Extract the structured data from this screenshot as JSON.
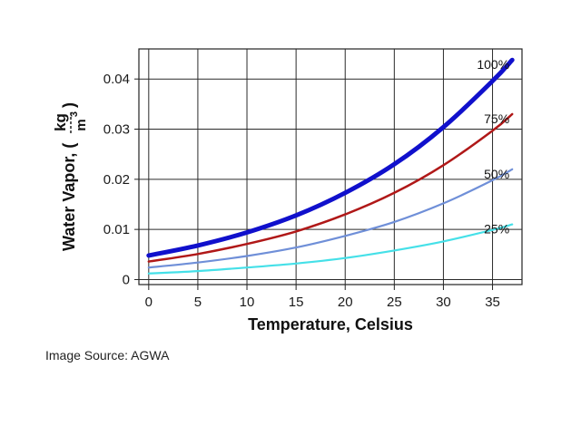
{
  "chart_data": {
    "type": "line",
    "title": "",
    "xlabel": "Temperature,   Celsius",
    "ylabel_prefix": "Water Vapor, (",
    "ylabel_num": "kg",
    "ylabel_den": "m",
    "ylabel_exp": "3",
    "ylabel_suffix": ")",
    "xlim": [
      -1,
      38
    ],
    "ylim": [
      -0.001,
      0.046
    ],
    "x_ticks": [
      0,
      5,
      10,
      15,
      20,
      25,
      30,
      35
    ],
    "y_ticks": [
      {
        "value": 0,
        "label": "0"
      },
      {
        "value": 0.01,
        "label": "0.01"
      },
      {
        "value": 0.02,
        "label": "0.02"
      },
      {
        "value": 0.03,
        "label": "0.03"
      },
      {
        "value": 0.04,
        "label": "0.04"
      }
    ],
    "grid": true,
    "x": [
      0,
      5,
      10,
      15,
      20,
      25,
      30,
      35,
      37
    ],
    "series": [
      {
        "name": "100%",
        "color": "#1010cc",
        "values": [
          0.0048,
          0.0068,
          0.0094,
          0.0128,
          0.0173,
          0.023,
          0.0304,
          0.0396,
          0.0438
        ]
      },
      {
        "name": "75%",
        "color": "#b01818",
        "values": [
          0.0036,
          0.0051,
          0.0071,
          0.0096,
          0.013,
          0.0173,
          0.0228,
          0.0297,
          0.033
        ]
      },
      {
        "name": "50%",
        "color": "#6f8fd8",
        "values": [
          0.0024,
          0.0034,
          0.0047,
          0.0064,
          0.0087,
          0.0115,
          0.0152,
          0.0198,
          0.022
        ]
      },
      {
        "name": "25%",
        "color": "#45e0e8",
        "values": [
          0.0012,
          0.0017,
          0.0024,
          0.0032,
          0.0043,
          0.0058,
          0.0076,
          0.0099,
          0.011
        ]
      }
    ]
  },
  "source_note": "Image Source: AGWA"
}
